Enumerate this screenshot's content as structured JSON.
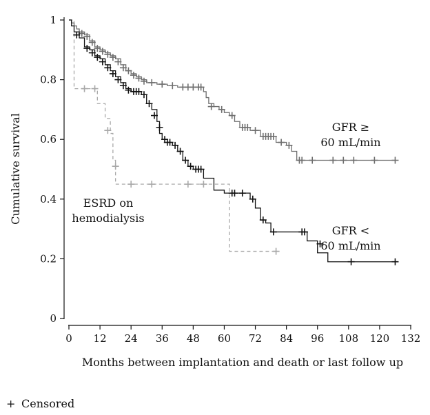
{
  "chart_data": {
    "type": "line",
    "subtype": "kaplan-meier step curves",
    "xlabel": "Months between implantation and death or last follow up",
    "ylabel": "Cumulative survival",
    "xlim": [
      0,
      132
    ],
    "ylim": [
      0,
      1
    ],
    "x_ticks": [
      0,
      12,
      24,
      36,
      48,
      60,
      72,
      84,
      96,
      108,
      120,
      132
    ],
    "y_ticks": [
      0,
      0.2,
      0.4,
      0.6,
      0.8,
      1
    ],
    "y_tick_labels": [
      "0",
      "0.2",
      "0.4",
      "0.6",
      "0.8",
      "1"
    ],
    "grid": false,
    "legend": {
      "marker": "+",
      "label": "Censored",
      "placement": "bottom-left"
    },
    "series": [
      {
        "name": "GFR ≥ 60 mL/min",
        "label_lines": [
          "GFR ≥",
          "60 mL/min"
        ],
        "color": "#6e6e6e",
        "dash": "solid",
        "steps": [
          [
            0,
            1.0
          ],
          [
            1,
            0.99
          ],
          [
            2,
            0.98
          ],
          [
            3,
            0.97
          ],
          [
            4,
            0.96
          ],
          [
            6,
            0.95
          ],
          [
            8,
            0.93
          ],
          [
            10,
            0.91
          ],
          [
            12,
            0.9
          ],
          [
            14,
            0.89
          ],
          [
            16,
            0.88
          ],
          [
            18,
            0.87
          ],
          [
            20,
            0.85
          ],
          [
            22,
            0.83
          ],
          [
            24,
            0.82
          ],
          [
            26,
            0.81
          ],
          [
            28,
            0.8
          ],
          [
            30,
            0.79
          ],
          [
            34,
            0.785
          ],
          [
            38,
            0.78
          ],
          [
            42,
            0.775
          ],
          [
            52,
            0.76
          ],
          [
            53,
            0.74
          ],
          [
            54,
            0.72
          ],
          [
            56,
            0.71
          ],
          [
            58,
            0.7
          ],
          [
            60,
            0.69
          ],
          [
            62,
            0.68
          ],
          [
            64,
            0.66
          ],
          [
            66,
            0.64
          ],
          [
            70,
            0.63
          ],
          [
            74,
            0.61
          ],
          [
            80,
            0.59
          ],
          [
            84,
            0.58
          ],
          [
            86,
            0.56
          ],
          [
            88,
            0.53
          ],
          [
            126,
            0.53
          ]
        ],
        "censored": [
          [
            5,
            0.955
          ],
          [
            7,
            0.945
          ],
          [
            9,
            0.925
          ],
          [
            11,
            0.905
          ],
          [
            13,
            0.895
          ],
          [
            15,
            0.885
          ],
          [
            17,
            0.875
          ],
          [
            19,
            0.86
          ],
          [
            21,
            0.84
          ],
          [
            23,
            0.83
          ],
          [
            25,
            0.815
          ],
          [
            27,
            0.805
          ],
          [
            29,
            0.795
          ],
          [
            32,
            0.79
          ],
          [
            36,
            0.785
          ],
          [
            40,
            0.78
          ],
          [
            44,
            0.775
          ],
          [
            46,
            0.775
          ],
          [
            48,
            0.775
          ],
          [
            50,
            0.775
          ],
          [
            51,
            0.775
          ],
          [
            55,
            0.71
          ],
          [
            59,
            0.7
          ],
          [
            63,
            0.68
          ],
          [
            67,
            0.64
          ],
          [
            68,
            0.64
          ],
          [
            69,
            0.64
          ],
          [
            72,
            0.63
          ],
          [
            75,
            0.61
          ],
          [
            76,
            0.61
          ],
          [
            77,
            0.61
          ],
          [
            78,
            0.61
          ],
          [
            79,
            0.61
          ],
          [
            82,
            0.59
          ],
          [
            85,
            0.58
          ],
          [
            89,
            0.53
          ],
          [
            90,
            0.53
          ],
          [
            94,
            0.53
          ],
          [
            102,
            0.53
          ],
          [
            106,
            0.53
          ],
          [
            110,
            0.53
          ],
          [
            118,
            0.53
          ],
          [
            126,
            0.53
          ]
        ]
      },
      {
        "name": "GFR < 60 mL/min",
        "label_lines": [
          "GFR <",
          "60 mL/min"
        ],
        "color": "#111111",
        "dash": "solid",
        "steps": [
          [
            0,
            1.0
          ],
          [
            1,
            0.98
          ],
          [
            2,
            0.96
          ],
          [
            4,
            0.94
          ],
          [
            6,
            0.91
          ],
          [
            8,
            0.9
          ],
          [
            10,
            0.88
          ],
          [
            12,
            0.87
          ],
          [
            14,
            0.85
          ],
          [
            16,
            0.83
          ],
          [
            18,
            0.81
          ],
          [
            20,
            0.79
          ],
          [
            22,
            0.77
          ],
          [
            24,
            0.76
          ],
          [
            28,
            0.75
          ],
          [
            30,
            0.72
          ],
          [
            32,
            0.7
          ],
          [
            34,
            0.66
          ],
          [
            35,
            0.62
          ],
          [
            36,
            0.6
          ],
          [
            38,
            0.59
          ],
          [
            40,
            0.58
          ],
          [
            42,
            0.56
          ],
          [
            44,
            0.53
          ],
          [
            46,
            0.51
          ],
          [
            48,
            0.5
          ],
          [
            52,
            0.47
          ],
          [
            56,
            0.43
          ],
          [
            60,
            0.42
          ],
          [
            70,
            0.4
          ],
          [
            72,
            0.37
          ],
          [
            74,
            0.33
          ],
          [
            76,
            0.32
          ],
          [
            78,
            0.29
          ],
          [
            92,
            0.26
          ],
          [
            96,
            0.22
          ],
          [
            100,
            0.19
          ],
          [
            126,
            0.19
          ]
        ],
        "censored": [
          [
            3,
            0.95
          ],
          [
            7,
            0.905
          ],
          [
            9,
            0.89
          ],
          [
            11,
            0.875
          ],
          [
            13,
            0.86
          ],
          [
            15,
            0.84
          ],
          [
            17,
            0.82
          ],
          [
            19,
            0.8
          ],
          [
            21,
            0.78
          ],
          [
            23,
            0.765
          ],
          [
            25,
            0.76
          ],
          [
            26,
            0.76
          ],
          [
            27,
            0.76
          ],
          [
            29,
            0.75
          ],
          [
            31,
            0.72
          ],
          [
            33,
            0.68
          ],
          [
            35,
            0.64
          ],
          [
            37,
            0.6
          ],
          [
            38,
            0.59
          ],
          [
            39,
            0.59
          ],
          [
            41,
            0.58
          ],
          [
            43,
            0.56
          ],
          [
            45,
            0.53
          ],
          [
            47,
            0.51
          ],
          [
            49,
            0.5
          ],
          [
            50,
            0.5
          ],
          [
            51,
            0.5
          ],
          [
            63,
            0.42
          ],
          [
            64,
            0.42
          ],
          [
            67,
            0.42
          ],
          [
            71,
            0.4
          ],
          [
            75,
            0.33
          ],
          [
            79,
            0.29
          ],
          [
            90,
            0.29
          ],
          [
            91,
            0.29
          ],
          [
            97,
            0.25
          ],
          [
            109,
            0.19
          ],
          [
            126,
            0.19
          ]
        ]
      },
      {
        "name": "ESRD on hemodialysis",
        "label_lines": [
          "ESRD on",
          "hemodialysis"
        ],
        "color": "#a8a8a8",
        "dash": "dashed",
        "steps": [
          [
            0,
            1.0
          ],
          [
            2,
            0.77
          ],
          [
            11,
            0.72
          ],
          [
            14,
            0.67
          ],
          [
            16,
            0.62
          ],
          [
            17,
            0.53
          ],
          [
            18,
            0.45
          ],
          [
            62,
            0.225
          ],
          [
            80,
            0.225
          ]
        ],
        "censored": [
          [
            6,
            0.77
          ],
          [
            10,
            0.77
          ],
          [
            15,
            0.63
          ],
          [
            18,
            0.51
          ],
          [
            24,
            0.45
          ],
          [
            32,
            0.45
          ],
          [
            46,
            0.45
          ],
          [
            52,
            0.45
          ],
          [
            80,
            0.225
          ]
        ]
      }
    ]
  }
}
